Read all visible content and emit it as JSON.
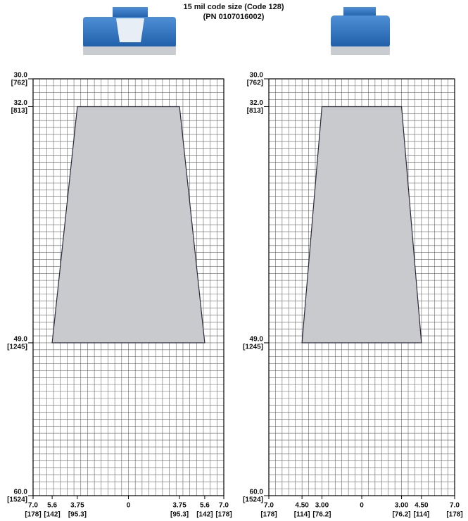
{
  "header": {
    "lines": [
      "15 mil code size (Code 128)",
      "(PN 0107016002)"
    ]
  },
  "chart_data": [
    {
      "type": "polygon",
      "color": "#c9cacd",
      "edge_color": "#2b2a3c",
      "x": [
        -3.75,
        3.75,
        5.6,
        -5.6
      ],
      "y": [
        32,
        32,
        49,
        49
      ],
      "xlim": [
        -7,
        7
      ],
      "ylim": [
        30,
        60
      ],
      "y_inverted": true,
      "grid": true,
      "minor_grid_step": 0.5,
      "xticks": [
        {
          "value": -7,
          "label": "7.0",
          "label_mm": "[178]"
        },
        {
          "value": -5.6,
          "label": "5.6",
          "label_mm": "[142]"
        },
        {
          "value": -3.75,
          "label": "3.75",
          "label_mm": "[95.3]"
        },
        0,
        {
          "value": 3.75,
          "label": "3.75",
          "label_mm": "[95.3]"
        },
        {
          "value": 5.6,
          "label": "5.6",
          "label_mm": "[142]"
        },
        {
          "value": 7,
          "label": "7.0",
          "label_mm": "[178]"
        }
      ],
      "yticks": [
        {
          "value": 30,
          "label": "30.0",
          "label_mm": "[762]"
        },
        {
          "value": 32,
          "label": "32.0",
          "label_mm": "[813]"
        },
        {
          "value": 49,
          "label": "49.0",
          "label_mm": "[1245]"
        },
        {
          "value": 60,
          "label": "60.0",
          "label_mm": "[1524]"
        }
      ]
    },
    {
      "type": "polygon",
      "color": "#c9cacd",
      "edge_color": "#2b2a3c",
      "x": [
        -3,
        3,
        4.5,
        -4.5
      ],
      "y": [
        32,
        32,
        49,
        49
      ],
      "xlim": [
        -7,
        7
      ],
      "ylim": [
        30,
        60
      ],
      "y_inverted": true,
      "grid": true,
      "minor_grid_step": 0.5,
      "xticks": [
        {
          "value": -7,
          "label": "7.0",
          "label_mm": "[178]"
        },
        {
          "value": -4.5,
          "label": "4.50",
          "label_mm": "[114]"
        },
        {
          "value": -3,
          "label": "3.00",
          "label_mm": "[76.2]"
        },
        0,
        {
          "value": 3,
          "label": "3.00",
          "label_mm": "[76.2]"
        },
        {
          "value": 4.5,
          "label": "4.50",
          "label_mm": "[114]"
        },
        {
          "value": 7,
          "label": "7.0",
          "label_mm": "[178]"
        }
      ],
      "yticks": [
        {
          "value": 30,
          "label": "30.0",
          "label_mm": "[762]"
        },
        {
          "value": 32,
          "label": "32.0",
          "label_mm": "[813]"
        },
        {
          "value": 49,
          "label": "49.0",
          "label_mm": "[1245]"
        },
        {
          "value": 60,
          "label": "60.0",
          "label_mm": "[1524]"
        }
      ]
    }
  ]
}
